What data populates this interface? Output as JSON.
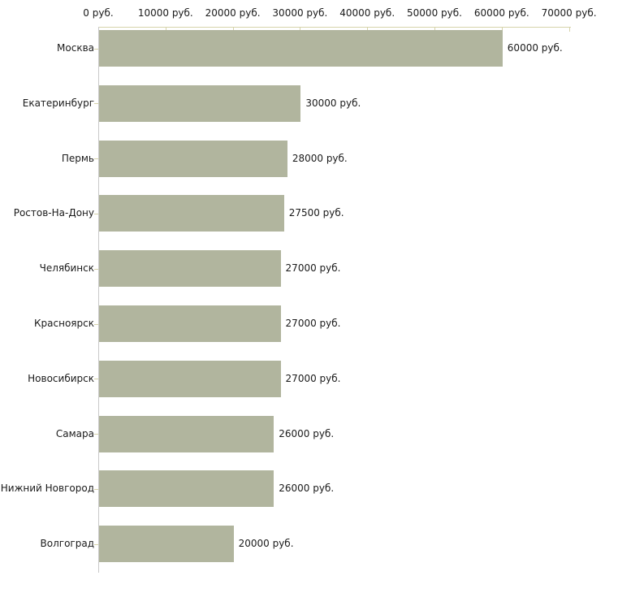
{
  "chart_data": {
    "type": "bar",
    "orientation": "horizontal",
    "title": "",
    "xlabel": "",
    "ylabel": "",
    "unit": "руб.",
    "xlim": [
      0,
      70000
    ],
    "grid": false,
    "legend": "none",
    "categories": [
      "Москва",
      "Екатеринбург",
      "Пермь",
      "Ростов-На-Дону",
      "Челябинск",
      "Красноярск",
      "Новосибирск",
      "Самара",
      "Нижний Новгород",
      "Волгоград"
    ],
    "values": [
      60000,
      30000,
      28000,
      27500,
      27000,
      27000,
      27000,
      26000,
      26000,
      20000
    ],
    "value_labels": [
      "60000 руб.",
      "30000 руб.",
      "28000 руб.",
      "27500 руб.",
      "27000 руб.",
      "27000 руб.",
      "27000 руб.",
      "26000 руб.",
      "26000 руб.",
      "20000 руб."
    ],
    "x_tick_values": [
      0,
      10000,
      20000,
      30000,
      40000,
      50000,
      60000,
      70000
    ],
    "x_tick_labels": [
      "0 руб.",
      "10000 руб.",
      "20000 руб.",
      "30000 руб.",
      "40000 руб.",
      "50000 руб.",
      "60000 руб.",
      "70000 руб."
    ],
    "colors": {
      "bar_fill": "#b1b59e",
      "axis_and_ticks": "#d6d3aa",
      "left_axis_line": "#c9c9c9",
      "text": "#1a1a1a",
      "background": "#ffffff"
    }
  }
}
